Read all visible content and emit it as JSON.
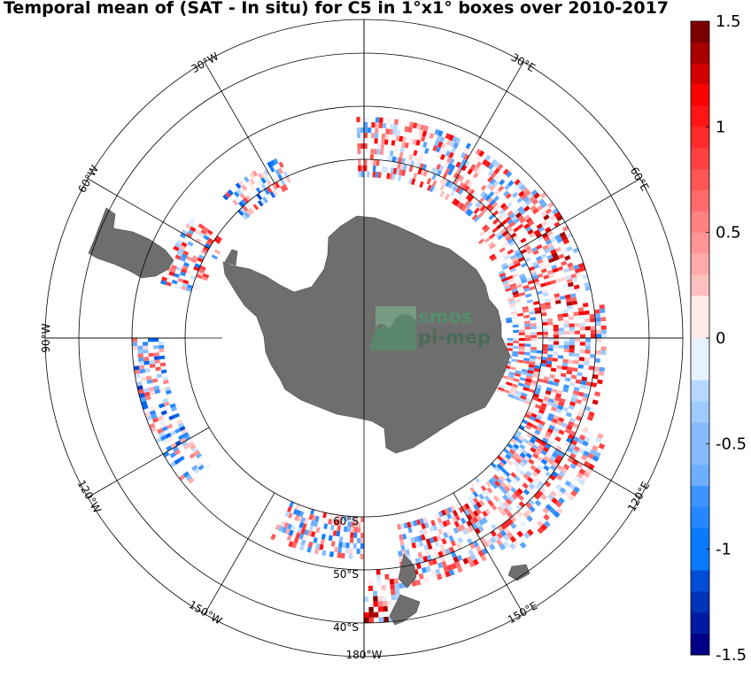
{
  "title": "Temporal mean of (SAT - In situ) for C5 in 1°x1° boxes over 2010-2017",
  "logo": {
    "line1": "smos",
    "line2": "pi-mep"
  },
  "colors": {
    "land": "#6e6e6e",
    "grid": "#000000",
    "positive": "#cc0000",
    "negative": "#0033cc"
  },
  "meridian_labels": [
    {
      "lon": -30,
      "text": "30°W"
    },
    {
      "lon": 30,
      "text": "30°E"
    },
    {
      "lon": -60,
      "text": "60°W"
    },
    {
      "lon": 60,
      "text": "60°E"
    },
    {
      "lon": -90,
      "text": "90°W"
    },
    {
      "lon": -120,
      "text": "120°W"
    },
    {
      "lon": 120,
      "text": "120°E"
    },
    {
      "lon": -150,
      "text": "150°W"
    },
    {
      "lon": 150,
      "text": "150°E"
    },
    {
      "lon": 180,
      "text": "180°W"
    }
  ],
  "latitude_labels": [
    {
      "lat": -60,
      "text": "60°S"
    },
    {
      "lat": -50,
      "text": "50°S"
    },
    {
      "lat": -40,
      "text": "40°S"
    }
  ],
  "colorbar": {
    "min": -1.5,
    "max": 1.5,
    "steps": 30,
    "tick_values": [
      1.5,
      1,
      0.5,
      0,
      -0.5,
      -1,
      -1.5
    ],
    "ticks": [
      "1.5",
      "1",
      "0.5",
      "0",
      "-0.5",
      "-1",
      "-1.5"
    ]
  },
  "chart_data": {
    "type": "heatmap",
    "projection": "south-polar-stereographic",
    "title": "Temporal mean of (SAT - In situ) for C5 in 1°x1° boxes over 2010-2017",
    "value_range": [
      -1.5,
      1.5
    ],
    "grid_parallels": [
      -40,
      -50,
      -60
    ],
    "grid_meridians_step_deg": 30,
    "cell_size_deg": 1,
    "regions": [
      {
        "lon": [
          -2,
          48
        ],
        "lat": [
          -63,
          -52
        ],
        "mean": 0.15
      },
      {
        "lon": [
          48,
          82
        ],
        "lat": [
          -65,
          -50
        ],
        "mean": 0.35
      },
      {
        "lon": [
          82,
          112
        ],
        "lat": [
          -66,
          -48
        ],
        "mean": 0.2
      },
      {
        "lon": [
          112,
          145
        ],
        "lat": [
          -60,
          -44
        ],
        "mean": 0.1
      },
      {
        "lon": [
          145,
          172
        ],
        "lat": [
          -58,
          -46
        ],
        "mean": 0.25
      },
      {
        "lon": [
          172,
          180
        ],
        "lat": [
          -50,
          -40
        ],
        "mean": 0.5
      },
      {
        "lon": [
          -180,
          -155
        ],
        "lat": [
          -60,
          -52
        ],
        "mean": 0.05
      },
      {
        "lon": [
          -130,
          -90
        ],
        "lat": [
          -56,
          -50
        ],
        "mean": -0.2
      },
      {
        "lon": [
          -75,
          -55
        ],
        "lat": [
          -62,
          -54
        ],
        "mean": 0.1
      },
      {
        "lon": [
          -45,
          -25
        ],
        "lat": [
          -62,
          -56
        ],
        "mean": -0.1
      }
    ]
  }
}
